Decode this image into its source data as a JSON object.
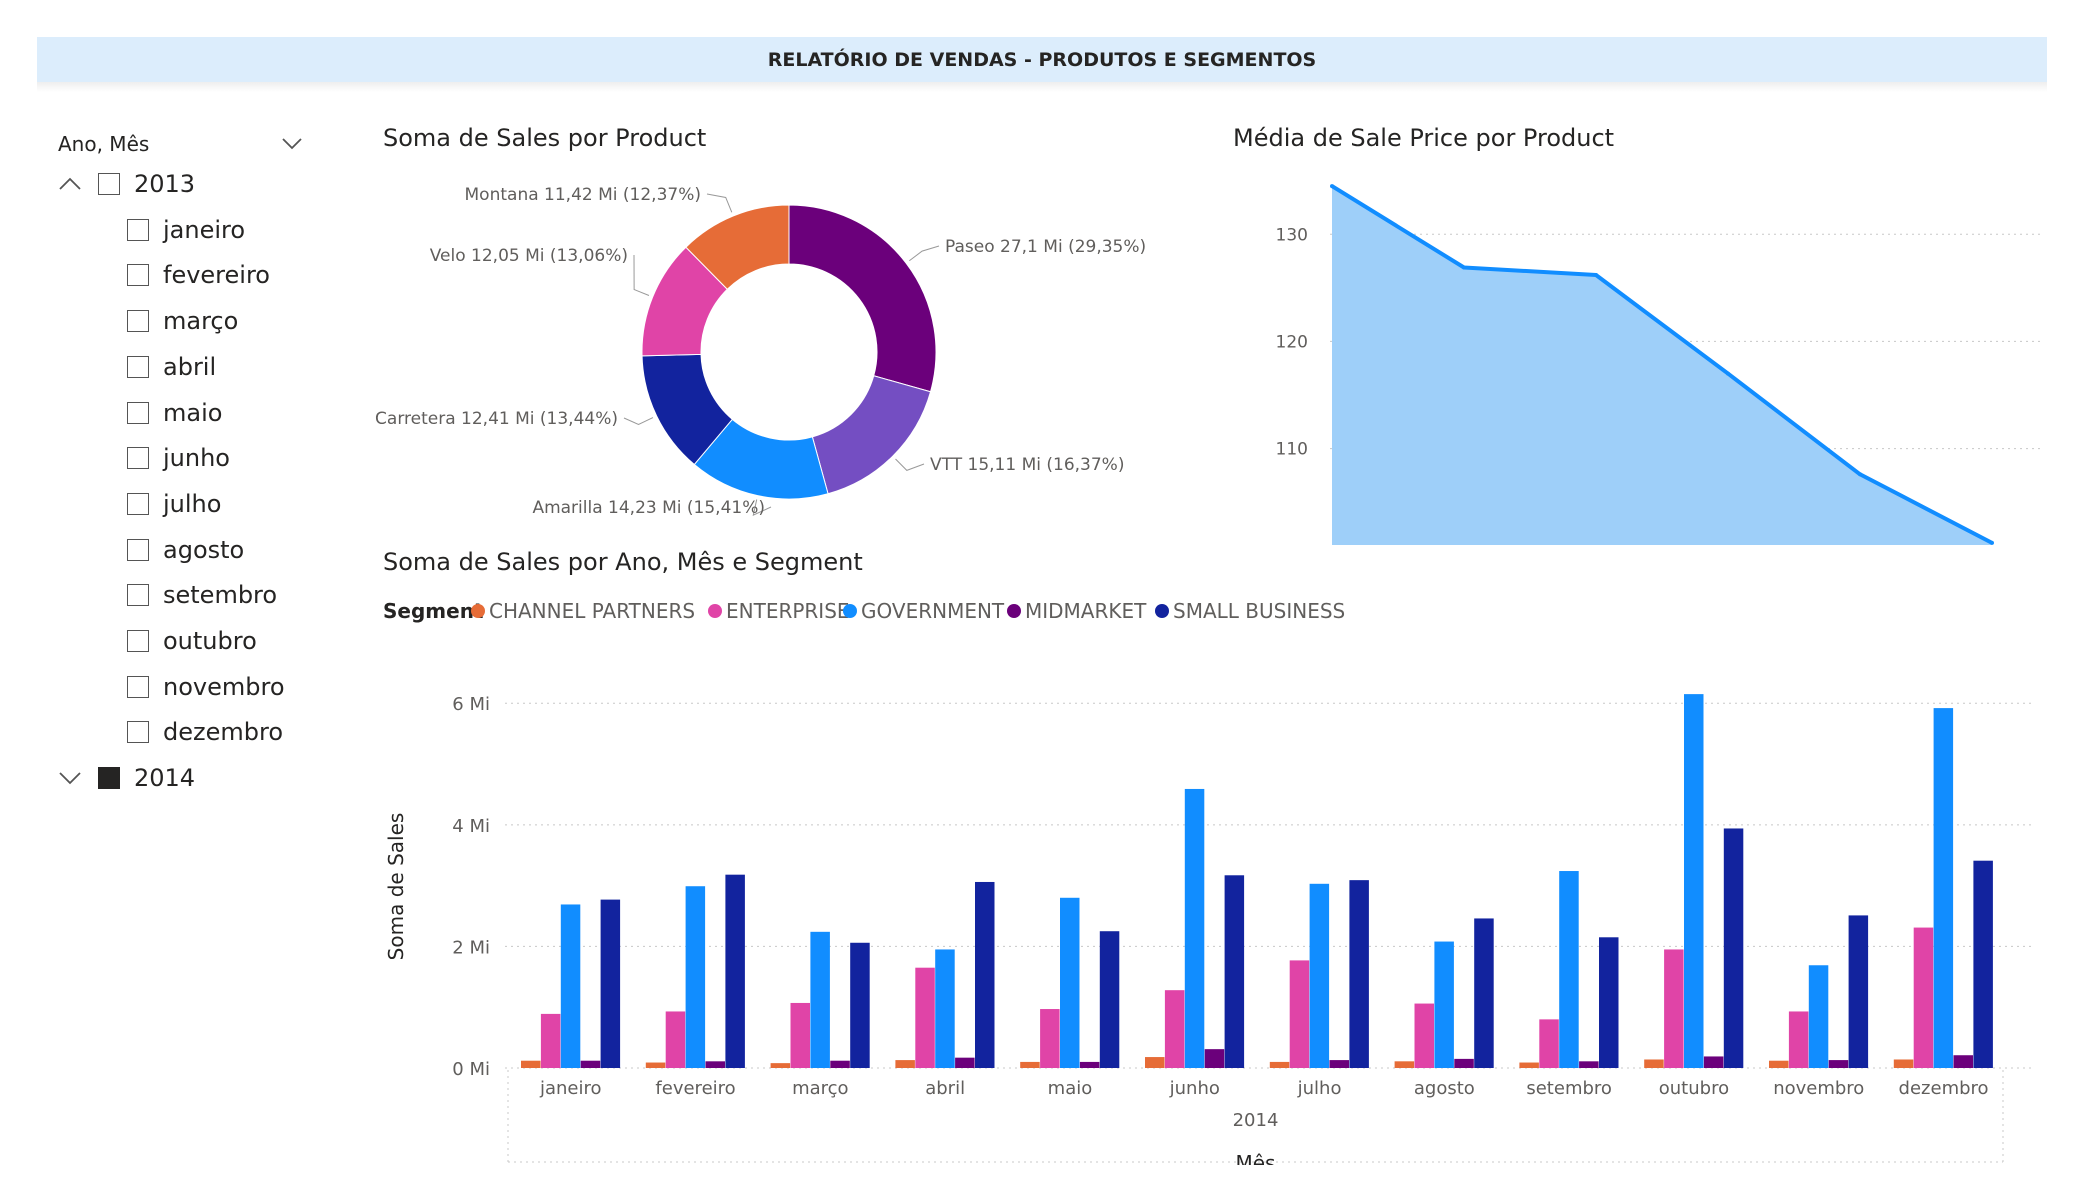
{
  "header": {
    "title": "RELATÓRIO DE VENDAS - PRODUTOS E SEGMENTOS"
  },
  "slicer": {
    "title": "Ano, Mês",
    "years": [
      {
        "label": "2013",
        "expanded": true,
        "checked": false,
        "months": [
          "janeiro",
          "fevereiro",
          "março",
          "abril",
          "maio",
          "junho",
          "julho",
          "agosto",
          "setembro",
          "outubro",
          "novembro",
          "dezembro"
        ]
      },
      {
        "label": "2014",
        "expanded": false,
        "checked": true,
        "months": []
      }
    ]
  },
  "colors": {
    "channel_partners": "#e66c37",
    "enterprise": "#e044a7",
    "government": "#118dff",
    "midmarket": "#6b007b",
    "small_business": "#12239e",
    "velo": "#e044a7",
    "montana": "#e66c37",
    "paseo": "#6b007b",
    "vtt": "#744ec2",
    "amarilla": "#118dff",
    "carretera": "#12239e",
    "area_fill": "#9ecff9",
    "area_line": "#118dff"
  },
  "chart_data": [
    {
      "type": "pie",
      "title": "Soma de Sales por Product",
      "slices": [
        {
          "name": "Paseo",
          "value": 27.1,
          "label": "Paseo 27,1 Mi (29,35%)"
        },
        {
          "name": "VTT",
          "value": 15.11,
          "label": "VTT 15,11 Mi (16,37%)"
        },
        {
          "name": "Amarilla",
          "value": 14.23,
          "label": "Amarilla 14,23 Mi (15,41%)"
        },
        {
          "name": "Carretera",
          "value": 12.41,
          "label": "Carretera 12,41 Mi (13,44%)"
        },
        {
          "name": "Velo",
          "value": 12.05,
          "label": "Velo 12,05 Mi (13,06%)"
        },
        {
          "name": "Montana",
          "value": 11.42,
          "label": "Montana 11,42 Mi (12,37%)"
        }
      ]
    },
    {
      "type": "area",
      "title": "Média de Sale Price por Product",
      "x": [
        0,
        1,
        2,
        3,
        4,
        5
      ],
      "values": [
        134.5,
        126.9,
        126.2,
        117.0,
        107.6,
        101.2
      ],
      "yticks": [
        "110",
        "120",
        "130"
      ],
      "ytick_values": [
        110,
        120,
        130
      ],
      "ylim": [
        101,
        136
      ],
      "grid": true
    },
    {
      "type": "bar",
      "title": "Soma de Sales por Ano, Mês e Segment",
      "legend_title": "Segment",
      "legend_position": "top-left",
      "categories": [
        "janeiro",
        "fevereiro",
        "março",
        "abril",
        "maio",
        "junho",
        "julho",
        "agosto",
        "setembro",
        "outubro",
        "novembro",
        "dezembro"
      ],
      "group_label": "2014",
      "xlabel": "Mês",
      "ylabel": "Soma de Sales",
      "yticks": [
        "0 Mi",
        "2 Mi",
        "4 Mi",
        "6 Mi"
      ],
      "ytick_values": [
        0,
        2,
        4,
        6
      ],
      "ylim": [
        0,
        6.3
      ],
      "series": [
        {
          "name": "CHANNEL PARTNERS",
          "values": [
            0.12,
            0.09,
            0.08,
            0.13,
            0.1,
            0.18,
            0.1,
            0.11,
            0.09,
            0.14,
            0.12,
            0.14
          ]
        },
        {
          "name": "ENTERPRISE",
          "values": [
            0.89,
            0.93,
            1.07,
            1.65,
            0.97,
            1.28,
            1.77,
            1.06,
            0.8,
            1.95,
            0.93,
            2.31
          ]
        },
        {
          "name": "GOVERNMENT",
          "values": [
            2.69,
            2.99,
            2.24,
            1.95,
            2.8,
            4.59,
            3.03,
            2.08,
            3.24,
            6.15,
            1.69,
            5.92
          ]
        },
        {
          "name": "MIDMARKET",
          "values": [
            0.12,
            0.11,
            0.12,
            0.17,
            0.1,
            0.31,
            0.13,
            0.15,
            0.11,
            0.19,
            0.13,
            0.21
          ]
        },
        {
          "name": "SMALL BUSINESS",
          "values": [
            2.77,
            3.18,
            2.06,
            3.06,
            2.25,
            3.17,
            3.09,
            2.46,
            2.15,
            3.94,
            2.51,
            3.41
          ]
        }
      ]
    }
  ]
}
